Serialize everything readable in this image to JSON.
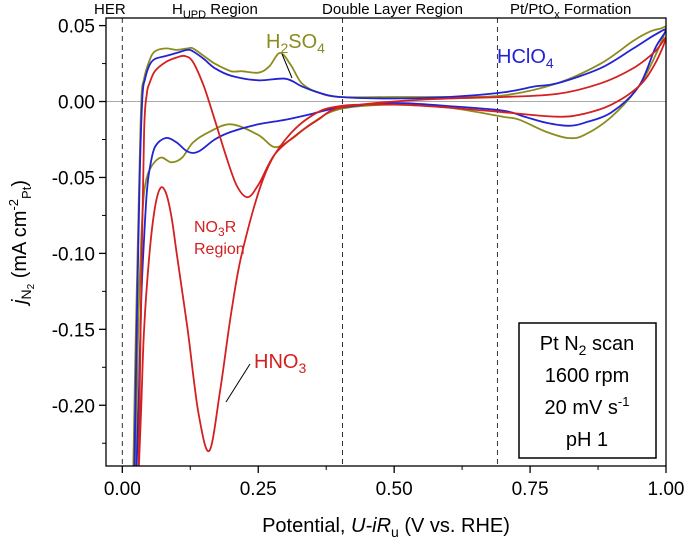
{
  "chart_data": {
    "type": "line",
    "xlabel": {
      "main": "Potential, ",
      "italic": "U-iR",
      "sub": "u",
      "tail": " (V vs. RHE)"
    },
    "ylabel": {
      "j": "j",
      "jsub": "N",
      "jsubsub": "2",
      "unit1": " (mA cm",
      "exp": "-2",
      "unitsub": "Pt",
      "close": ")"
    },
    "xlim": [
      -0.03,
      1.0
    ],
    "ylim": [
      -0.24,
      0.055
    ],
    "xticks": [
      {
        "v": 0.0,
        "label": "0.00"
      },
      {
        "v": 0.25,
        "label": "0.25"
      },
      {
        "v": 0.5,
        "label": "0.50"
      },
      {
        "v": 0.75,
        "label": "0.75"
      },
      {
        "v": 1.0,
        "label": "1.00"
      }
    ],
    "yticks": [
      {
        "v": 0.05,
        "label": "0.05"
      },
      {
        "v": 0.0,
        "label": "0.00"
      },
      {
        "v": -0.05,
        "label": "-0.05"
      },
      {
        "v": -0.1,
        "label": "-0.10"
      },
      {
        "v": -0.15,
        "label": "-0.15"
      },
      {
        "v": -0.2,
        "label": "-0.20"
      }
    ],
    "region_lines_x": [
      0.0,
      0.405,
      0.69
    ],
    "regions": [
      {
        "text": "HER"
      },
      {
        "main": "H",
        "sub": "UPD",
        "tail": " Region"
      },
      {
        "text": "Double Layer Region"
      },
      {
        "main": "Pt/PtO",
        "sub": "x",
        "tail": " Formation"
      }
    ],
    "series": [
      {
        "name_main": "H",
        "name_sub1": "2",
        "name_mid": "SO",
        "name_sub2": "4",
        "color": "#8c8c1e",
        "x": [
          0.02,
          0.025,
          0.03,
          0.035,
          0.04,
          0.05,
          0.06,
          0.08,
          0.1,
          0.12,
          0.13,
          0.15,
          0.17,
          0.2,
          0.22,
          0.25,
          0.27,
          0.29,
          0.31,
          0.33,
          0.36,
          0.4,
          0.5,
          0.6,
          0.7,
          0.8,
          0.88,
          0.94,
          0.97,
          0.99,
          1.0,
          0.98,
          0.95,
          0.9,
          0.85,
          0.82,
          0.78,
          0.73,
          0.7,
          0.6,
          0.5,
          0.4,
          0.35,
          0.31,
          0.28,
          0.25,
          0.2,
          0.16,
          0.13,
          0.11,
          0.09,
          0.07,
          0.05,
          0.04,
          0.035,
          0.03,
          0.027,
          0.025
        ],
        "y": [
          -0.245,
          -0.15,
          -0.07,
          0.0,
          0.015,
          0.027,
          0.033,
          0.035,
          0.034,
          0.035,
          0.035,
          0.03,
          0.025,
          0.02,
          0.02,
          0.019,
          0.023,
          0.032,
          0.024,
          0.012,
          0.006,
          0.003,
          0.003,
          0.003,
          0.004,
          0.012,
          0.025,
          0.04,
          0.046,
          0.048,
          0.048,
          0.03,
          0.01,
          -0.01,
          -0.022,
          -0.024,
          -0.02,
          -0.012,
          -0.01,
          -0.004,
          -0.002,
          -0.005,
          -0.014,
          -0.025,
          -0.03,
          -0.022,
          -0.015,
          -0.02,
          -0.027,
          -0.037,
          -0.04,
          -0.037,
          -0.045,
          -0.06,
          -0.09,
          -0.14,
          -0.19,
          -0.245
        ]
      },
      {
        "name_main": "HClO",
        "name_sub": "4",
        "color": "#2323d4",
        "x": [
          0.022,
          0.027,
          0.032,
          0.037,
          0.042,
          0.05,
          0.06,
          0.08,
          0.1,
          0.12,
          0.13,
          0.15,
          0.17,
          0.2,
          0.25,
          0.3,
          0.33,
          0.36,
          0.4,
          0.5,
          0.6,
          0.7,
          0.76,
          0.8,
          0.88,
          0.94,
          0.98,
          1.0,
          0.98,
          0.95,
          0.9,
          0.85,
          0.82,
          0.78,
          0.74,
          0.7,
          0.6,
          0.5,
          0.4,
          0.35,
          0.3,
          0.25,
          0.2,
          0.17,
          0.14,
          0.12,
          0.1,
          0.08,
          0.06,
          0.05,
          0.045,
          0.04,
          0.035,
          0.03,
          0.026
        ],
        "y": [
          -0.245,
          -0.14,
          -0.05,
          0.003,
          0.015,
          0.024,
          0.028,
          0.03,
          0.032,
          0.034,
          0.033,
          0.028,
          0.022,
          0.017,
          0.014,
          0.015,
          0.01,
          0.006,
          0.003,
          0.002,
          0.003,
          0.006,
          0.01,
          0.012,
          0.022,
          0.035,
          0.044,
          0.047,
          0.035,
          0.01,
          -0.007,
          -0.014,
          -0.016,
          -0.014,
          -0.01,
          -0.006,
          -0.003,
          -0.001,
          -0.004,
          -0.008,
          -0.012,
          -0.015,
          -0.02,
          -0.025,
          -0.033,
          -0.033,
          -0.027,
          -0.024,
          -0.03,
          -0.045,
          -0.06,
          -0.09,
          -0.13,
          -0.2,
          -0.245
        ]
      },
      {
        "name_main": "HNO",
        "name_sub": "3",
        "color": "#d42020",
        "x": [
          0.03,
          0.035,
          0.04,
          0.045,
          0.05,
          0.06,
          0.08,
          0.1,
          0.115,
          0.13,
          0.15,
          0.17,
          0.19,
          0.21,
          0.23,
          0.25,
          0.28,
          0.32,
          0.36,
          0.4,
          0.5,
          0.6,
          0.7,
          0.8,
          0.88,
          0.94,
          0.98,
          1.0,
          0.98,
          0.95,
          0.9,
          0.85,
          0.8,
          0.7,
          0.6,
          0.5,
          0.4,
          0.35,
          0.3,
          0.26,
          0.22,
          0.2,
          0.18,
          0.16,
          0.14,
          0.12,
          0.1,
          0.09,
          0.08,
          0.07,
          0.06,
          0.05,
          0.04,
          0.035,
          0.03
        ],
        "y": [
          -0.245,
          -0.12,
          -0.02,
          0.005,
          0.012,
          0.02,
          0.026,
          0.029,
          0.03,
          0.026,
          0.01,
          -0.012,
          -0.035,
          -0.055,
          -0.063,
          -0.055,
          -0.035,
          -0.022,
          -0.012,
          -0.004,
          0.0,
          0.002,
          0.003,
          0.005,
          0.012,
          0.022,
          0.033,
          0.042,
          0.025,
          0.01,
          -0.002,
          -0.008,
          -0.01,
          -0.007,
          -0.004,
          -0.002,
          -0.003,
          -0.009,
          -0.025,
          -0.05,
          -0.1,
          -0.14,
          -0.19,
          -0.23,
          -0.205,
          -0.15,
          -0.1,
          -0.075,
          -0.06,
          -0.057,
          -0.07,
          -0.1,
          -0.15,
          -0.2,
          -0.245
        ]
      }
    ],
    "annotations": {
      "h2so4": {
        "main": "H",
        "sub1": "2",
        "mid": "SO",
        "sub2": "4"
      },
      "hclo4": {
        "main": "HClO",
        "sub": "4"
      },
      "hno3": {
        "main": "HNO",
        "sub": "3"
      },
      "no3r_line1": {
        "main": "NO",
        "sub": "3",
        "tail": "R"
      },
      "no3r_line2": "Region"
    },
    "info_box": {
      "line1": {
        "main": "Pt N",
        "sub": "2",
        "tail": " scan"
      },
      "line2": "1600 rpm",
      "line3": {
        "main": "20 mV s",
        "exp": "-1"
      },
      "line4": "pH 1"
    },
    "colors": {
      "h2so4": "#8c8c1e",
      "hclo4": "#2323d4",
      "hno3": "#d42020"
    }
  }
}
